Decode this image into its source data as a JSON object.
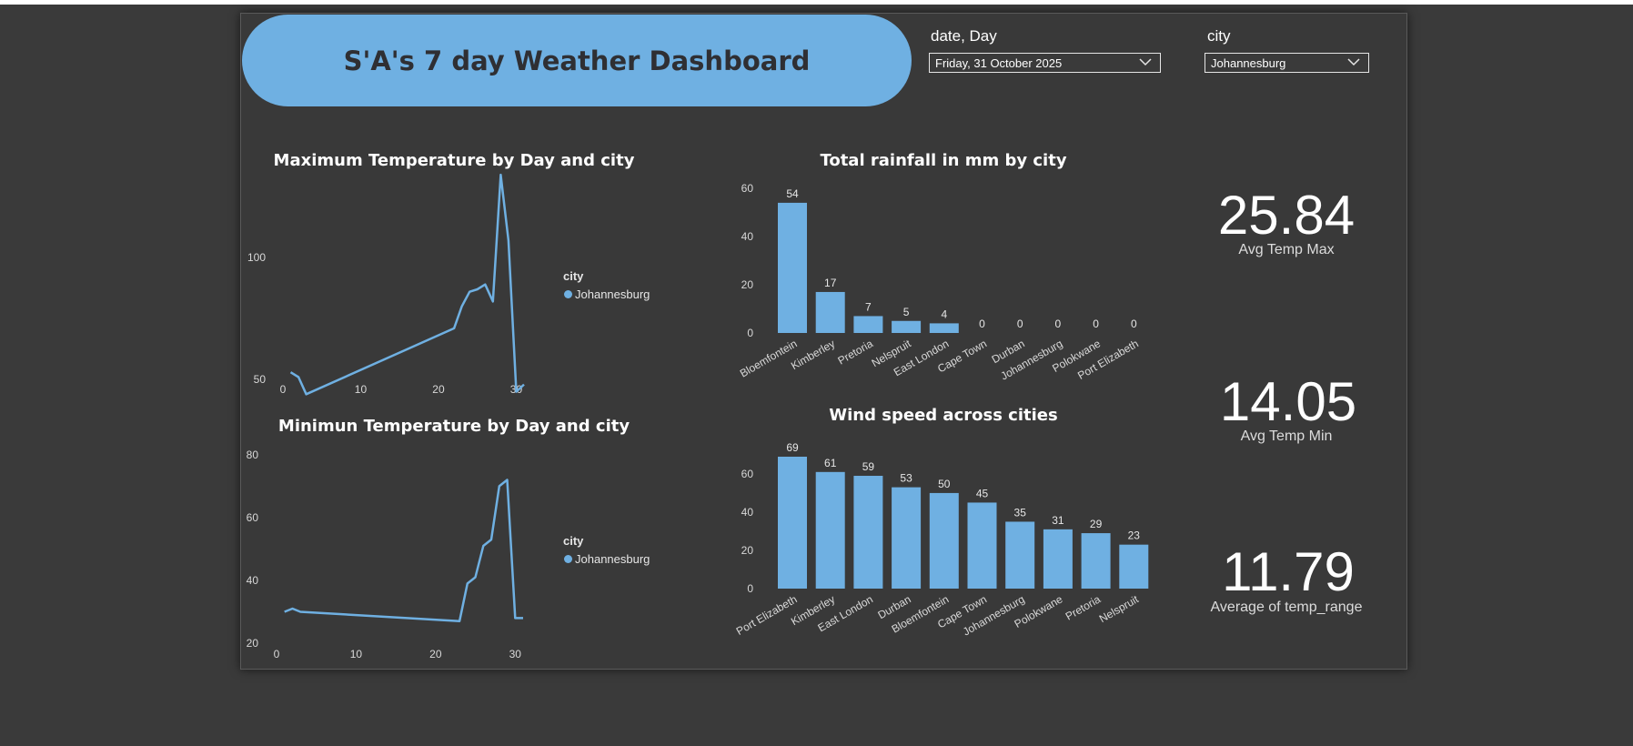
{
  "dashboard": {
    "title": "S'A's 7 day Weather Dashboard"
  },
  "slicers": {
    "date": {
      "label": "date, Day",
      "value": "Friday, 31 October 2025"
    },
    "city": {
      "label": "city",
      "value": "Johannesburg"
    }
  },
  "colors": {
    "accent": "#6fb0e2",
    "background": "#393939"
  },
  "charts": {
    "max_temp": {
      "title": "Maximum Temperature by Day and city",
      "legend_title": "city",
      "legend_item": "Johannesburg"
    },
    "min_temp": {
      "title": "Minimun Temperature by Day and city",
      "legend_title": "city",
      "legend_item": "Johannesburg"
    },
    "rainfall": {
      "title": "Total rainfall in mm by city"
    },
    "wind": {
      "title": "Wind speed across cities"
    }
  },
  "kpis": {
    "avg_temp_max": {
      "value": "25.84",
      "label": "Avg Temp Max"
    },
    "avg_temp_min": {
      "value": "14.05",
      "label": "Avg Temp Min"
    },
    "avg_temp_range": {
      "value": "11.79",
      "label": "Average of temp_range"
    }
  },
  "chart_data": [
    {
      "id": "max_temp",
      "type": "line",
      "title": "Maximum Temperature by Day and city",
      "xlim": [
        0,
        31
      ],
      "ylim": [
        40,
        140
      ],
      "xticks": [
        0,
        10,
        20,
        30
      ],
      "yticks": [
        50,
        100
      ],
      "legend_title": "city",
      "series": [
        {
          "name": "Johannesburg",
          "color": "#6fb0e2",
          "x": [
            1,
            2,
            3,
            22,
            23,
            24,
            25,
            26,
            27,
            28,
            29,
            30,
            31
          ],
          "y": [
            53,
            51,
            44,
            71,
            80,
            86,
            87,
            89,
            82,
            134,
            107,
            45,
            48
          ]
        }
      ]
    },
    {
      "id": "min_temp",
      "type": "line",
      "title": "Minimun Temperature by Day and city",
      "xlim": [
        0,
        31
      ],
      "ylim": [
        20,
        82
      ],
      "xticks": [
        0,
        10,
        20,
        30
      ],
      "yticks": [
        20,
        40,
        60,
        80
      ],
      "legend_title": "city",
      "series": [
        {
          "name": "Johannesburg",
          "color": "#6fb0e2",
          "x": [
            1,
            2,
            3,
            23,
            24,
            25,
            26,
            27,
            28,
            29,
            30,
            31
          ],
          "y": [
            30,
            31,
            30,
            27,
            39,
            41,
            51,
            53,
            70,
            72,
            28,
            28
          ]
        }
      ]
    },
    {
      "id": "rainfall",
      "type": "bar",
      "title": "Total rainfall in mm by city",
      "categories": [
        "Bloemfontein",
        "Kimberley",
        "Pretoria",
        "Nelspruit",
        "East London",
        "Cape Town",
        "Durban",
        "Johannesburg",
        "Polokwane",
        "Port Elizabeth"
      ],
      "values": [
        54,
        17,
        7,
        5,
        4,
        0,
        0,
        0,
        0,
        0
      ],
      "ylim": [
        0,
        60
      ],
      "yticks": [
        0,
        20,
        40,
        60
      ]
    },
    {
      "id": "wind",
      "type": "bar",
      "title": "Wind speed across cities",
      "categories": [
        "Port Elizabeth",
        "Kimberley",
        "East London",
        "Durban",
        "Bloemfontein",
        "Cape Town",
        "Johannesburg",
        "Polokwane",
        "Pretoria",
        "Nelspruit"
      ],
      "values": [
        69,
        61,
        59,
        53,
        50,
        45,
        35,
        31,
        29,
        23
      ],
      "ylim": [
        0,
        69
      ],
      "yticks": [
        0,
        20,
        40,
        60
      ]
    }
  ]
}
